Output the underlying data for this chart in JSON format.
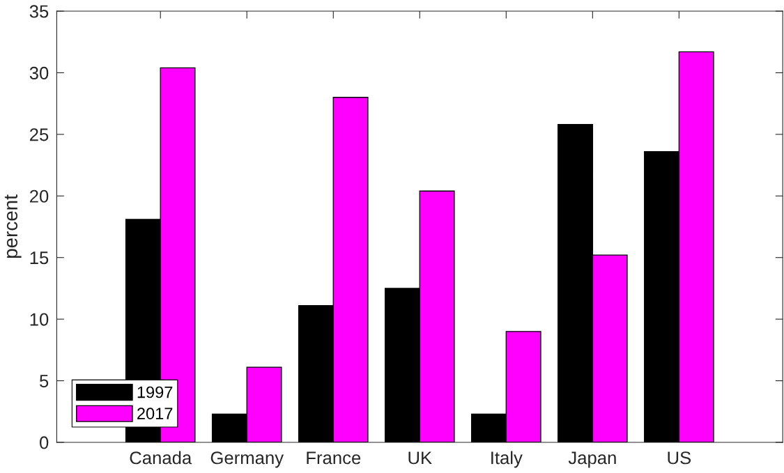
{
  "chart_data": {
    "type": "bar",
    "ylabel": "percent",
    "categories": [
      "Canada",
      "Germany",
      "France",
      "UK",
      "Italy",
      "Japan",
      "US"
    ],
    "series": [
      {
        "name": "1997",
        "color": "#000000",
        "values": [
          18.1,
          2.3,
          11.1,
          12.5,
          2.3,
          25.8,
          23.6
        ]
      },
      {
        "name": "2017",
        "color": "#ff00ff",
        "values": [
          30.4,
          6.1,
          28.0,
          20.4,
          9.0,
          15.2,
          31.7
        ]
      }
    ],
    "ylim": [
      0,
      35
    ],
    "yticks": [
      0,
      5,
      10,
      15,
      20,
      25,
      30,
      35
    ],
    "grid": false,
    "legend": "bottom left"
  }
}
